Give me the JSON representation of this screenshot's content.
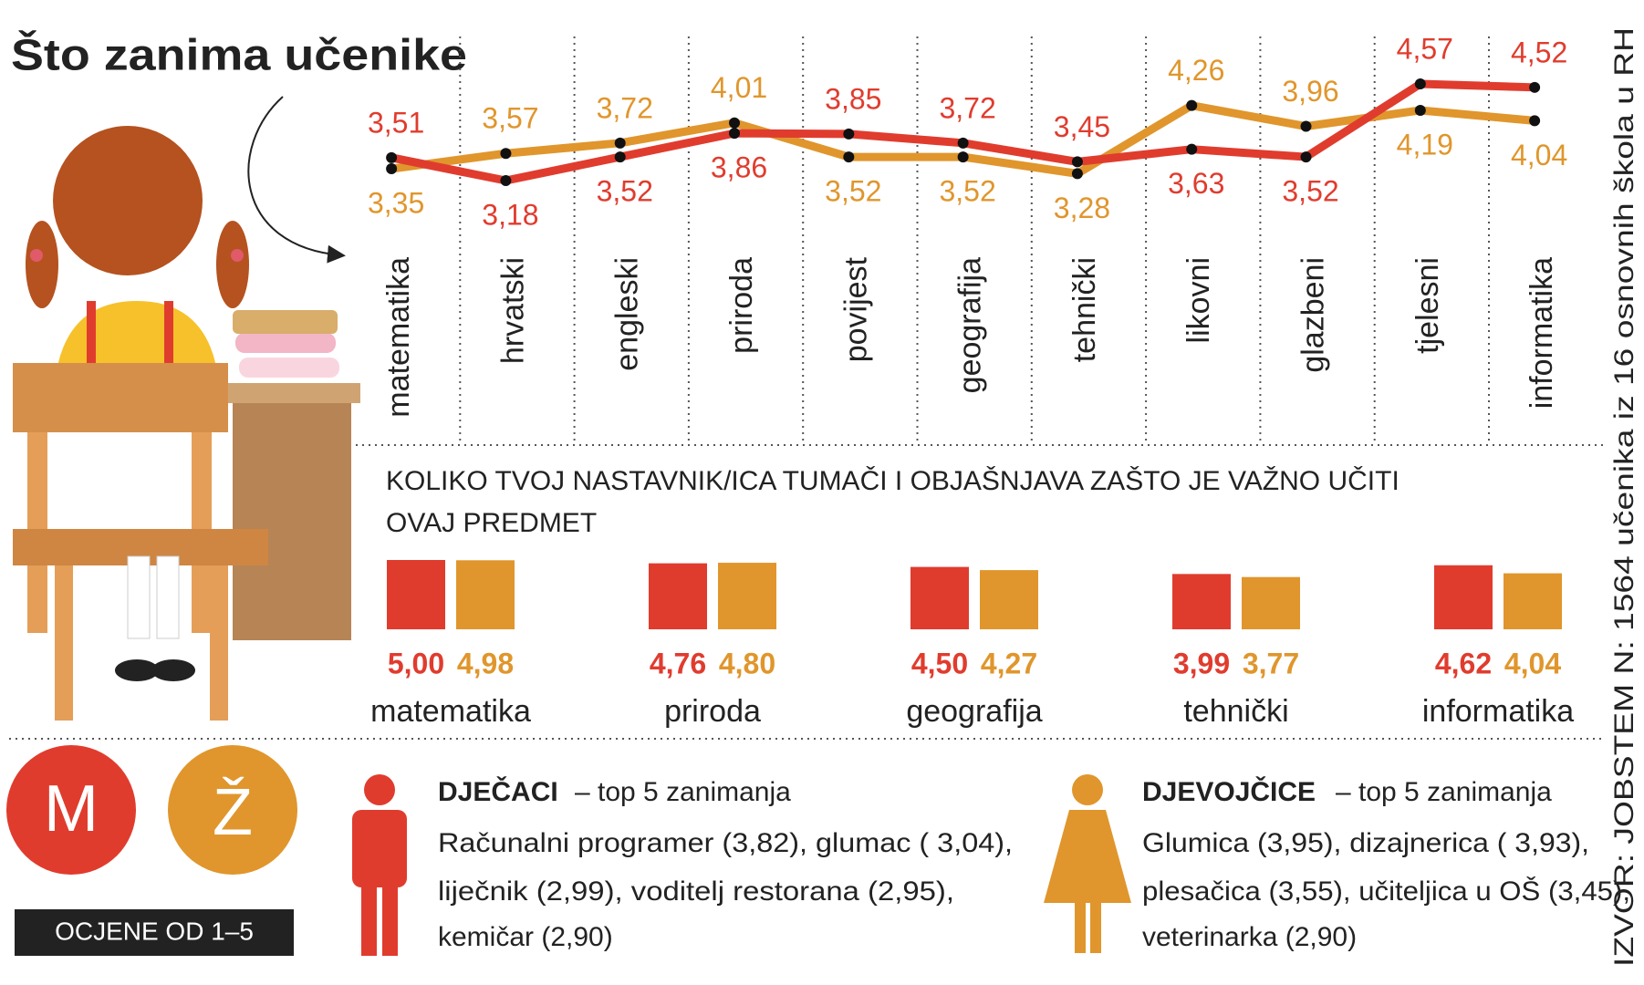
{
  "title": "Što zanima učenike",
  "source": "IZVOR: JOBSTEM N: 1564 učenika iz 16 osnovnih škola u RH",
  "scale_note": "OCJENE OD 1–5",
  "chart_data": [
    {
      "type": "line",
      "categories": [
        "matematika",
        "hrvatski",
        "engleski",
        "priroda",
        "povijest",
        "geografija",
        "tehnički",
        "likovni",
        "glazbeni",
        "tjelesni",
        "informatika"
      ],
      "series": [
        {
          "name": "M",
          "color": "#e03c2e",
          "values": [
            3.51,
            3.18,
            3.52,
            3.86,
            3.85,
            3.72,
            3.45,
            3.63,
            3.52,
            4.57,
            4.52
          ],
          "value_labels": [
            "3,51",
            "3,18",
            "3,52",
            "3,86",
            "3,85",
            "3,72",
            "3,45",
            "3,63",
            "3,52",
            "4,57",
            "4,52"
          ]
        },
        {
          "name": "Ž",
          "color": "#e0962c",
          "values": [
            3.35,
            3.57,
            3.72,
            4.01,
            3.52,
            3.52,
            3.28,
            4.26,
            3.96,
            4.19,
            4.04
          ],
          "value_labels": [
            "3,35",
            "3,57",
            "3,72",
            "4,01",
            "3,52",
            "3,52",
            "3,28",
            "4,26",
            "3,96",
            "4,19",
            "4,04"
          ]
        }
      ]
    },
    {
      "type": "bar",
      "title": "KOLIKO TVOJ NASTAVNIK/ICA TUMAČI I OBJAŠNJAVA ZAŠTO JE VAŽNO UČITI OVAJ PREDMET",
      "categories": [
        "matematika",
        "priroda",
        "geografija",
        "tehnički",
        "informatika"
      ],
      "series": [
        {
          "color": "#e03c2e",
          "values": [
            5.0,
            4.76,
            4.5,
            3.99,
            4.62
          ],
          "value_labels": [
            "5,00",
            "4,76",
            "4,50",
            "3,99",
            "4,62"
          ]
        },
        {
          "color": "#e0962c",
          "values": [
            4.98,
            4.8,
            4.27,
            3.77,
            4.04
          ],
          "value_labels": [
            "4,98",
            "4,80",
            "4,27",
            "3,77",
            "4,04"
          ]
        }
      ]
    }
  ],
  "boys": {
    "heading": "DJEČACI",
    "subheading": "– top 5 zanimanja",
    "lines": [
      "Računalni programer (3,82), glumac ( 3,04),",
      "liječnik (2,99), voditelj restorana (2,95),",
      "kemičar (2,90)"
    ]
  },
  "girls": {
    "heading": "DJEVOJČICE",
    "subheading": "– top 5 zanimanja",
    "lines": [
      "Glumica (3,95), dizajnerica ( 3,93),",
      "plesačica (3,55), učiteljica u OŠ (3,45),",
      "veterinarka (2,90)"
    ]
  }
}
